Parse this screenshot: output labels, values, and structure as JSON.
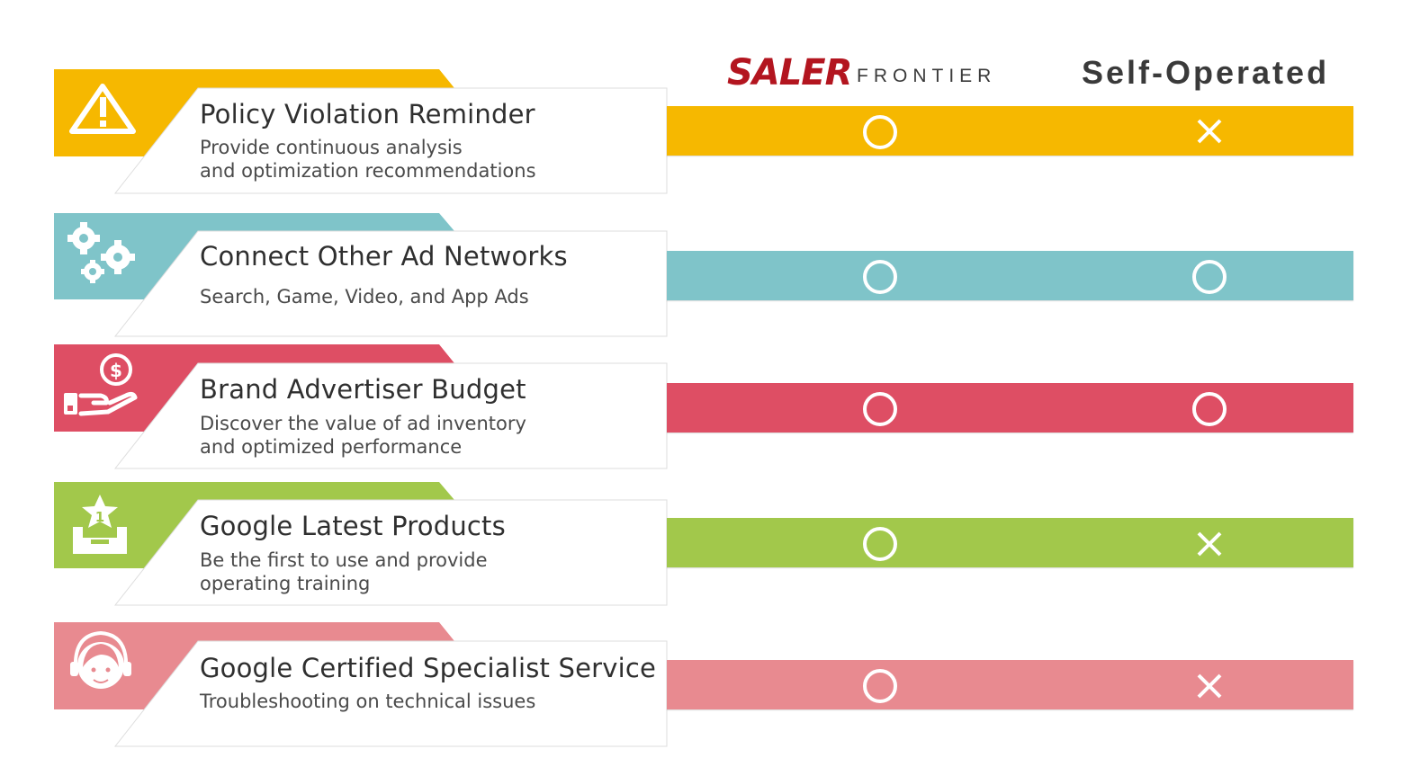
{
  "header": {
    "brand_main": "SALER",
    "brand_sub": "FRONTIER",
    "compare_label": "Self-Operated"
  },
  "colors": {
    "yellow": "#f6b800",
    "teal": "#7fc4c9",
    "red": "#de4e64",
    "green": "#a2c84b",
    "pink": "#e88a90",
    "brand_red": "#b3151f"
  },
  "features": [
    {
      "title": "Policy Violation Reminder",
      "desc": "Provide continuous analysis\nand optimization recommendations",
      "icon": "warning-icon",
      "saler": "circle",
      "self": "cross"
    },
    {
      "title": "Connect  Other Ad Networks",
      "desc": "Search, Game, Video, and App Ads",
      "icon": "gears-icon",
      "saler": "circle",
      "self": "circle"
    },
    {
      "title": "Brand Advertiser Budget",
      "desc": "Discover the value of ad inventory\nand optimized performance",
      "icon": "money-hand-icon",
      "saler": "circle",
      "self": "circle"
    },
    {
      "title": "Google Latest Products",
      "desc": "Be the first to use and provide\noperating training",
      "icon": "first-star-box-icon",
      "saler": "circle",
      "self": "cross"
    },
    {
      "title": "Google Certified Specialist Service",
      "desc": "Troubleshooting on technical issues",
      "icon": "support-headset-icon",
      "saler": "circle",
      "self": "cross"
    }
  ]
}
